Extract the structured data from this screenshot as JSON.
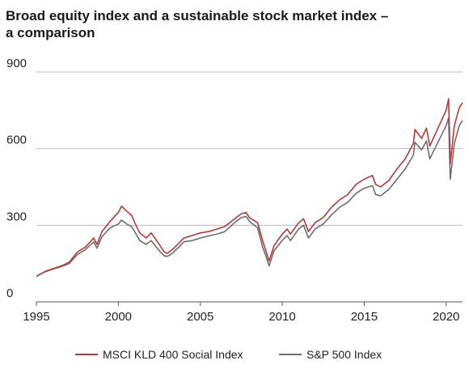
{
  "chart_data": {
    "type": "line",
    "title": "Broad equity index and a sustainable stock market index – a comparison",
    "title_lines": [
      "Broad equity index and a sustainable stock market index –",
      "a comparison"
    ],
    "xlabel": "",
    "ylabel": "",
    "xlim": [
      1995,
      2021
    ],
    "ylim": [
      0,
      900
    ],
    "y_ticks": [
      0,
      300,
      600,
      900
    ],
    "x_ticks": [
      1995,
      2000,
      2005,
      2010,
      2015,
      2020
    ],
    "grid": "horizontal",
    "legend_placement": "bottom",
    "colors": {
      "msci": "#b33a36",
      "sp": "#6e6e6e",
      "grid": "#bdbdbd",
      "axis": "#555555"
    },
    "series": [
      {
        "name": "MSCI KLD 400 Social Index",
        "points": [
          [
            1995.0,
            100
          ],
          [
            1995.5,
            118
          ],
          [
            1996.0,
            130
          ],
          [
            1996.5,
            140
          ],
          [
            1997.0,
            155
          ],
          [
            1997.5,
            195
          ],
          [
            1998.0,
            215
          ],
          [
            1998.5,
            250
          ],
          [
            1998.7,
            225
          ],
          [
            1999.0,
            275
          ],
          [
            1999.5,
            315
          ],
          [
            2000.0,
            350
          ],
          [
            2000.2,
            375
          ],
          [
            2000.5,
            355
          ],
          [
            2000.8,
            340
          ],
          [
            2001.0,
            310
          ],
          [
            2001.3,
            270
          ],
          [
            2001.7,
            250
          ],
          [
            2002.0,
            270
          ],
          [
            2002.5,
            225
          ],
          [
            2002.8,
            195
          ],
          [
            2003.0,
            190
          ],
          [
            2003.3,
            205
          ],
          [
            2003.7,
            230
          ],
          [
            2004.0,
            250
          ],
          [
            2004.5,
            260
          ],
          [
            2005.0,
            270
          ],
          [
            2005.5,
            275
          ],
          [
            2006.0,
            285
          ],
          [
            2006.5,
            295
          ],
          [
            2007.0,
            320
          ],
          [
            2007.5,
            345
          ],
          [
            2007.8,
            350
          ],
          [
            2008.0,
            330
          ],
          [
            2008.5,
            310
          ],
          [
            2008.8,
            240
          ],
          [
            2009.0,
            200
          ],
          [
            2009.2,
            160
          ],
          [
            2009.5,
            220
          ],
          [
            2010.0,
            265
          ],
          [
            2010.3,
            285
          ],
          [
            2010.5,
            265
          ],
          [
            2011.0,
            310
          ],
          [
            2011.3,
            325
          ],
          [
            2011.6,
            275
          ],
          [
            2012.0,
            310
          ],
          [
            2012.5,
            330
          ],
          [
            2013.0,
            370
          ],
          [
            2013.5,
            400
          ],
          [
            2014.0,
            420
          ],
          [
            2014.5,
            460
          ],
          [
            2015.0,
            480
          ],
          [
            2015.5,
            495
          ],
          [
            2015.7,
            460
          ],
          [
            2016.0,
            450
          ],
          [
            2016.5,
            475
          ],
          [
            2017.0,
            520
          ],
          [
            2017.5,
            560
          ],
          [
            2018.0,
            620
          ],
          [
            2018.1,
            675
          ],
          [
            2018.5,
            640
          ],
          [
            2018.8,
            680
          ],
          [
            2019.0,
            610
          ],
          [
            2019.5,
            680
          ],
          [
            2020.0,
            750
          ],
          [
            2020.15,
            795
          ],
          [
            2020.25,
            540
          ],
          [
            2020.5,
            690
          ],
          [
            2020.8,
            760
          ],
          [
            2021.0,
            780
          ]
        ]
      },
      {
        "name": "S&P 500 Index",
        "points": [
          [
            1995.0,
            100
          ],
          [
            1995.5,
            117
          ],
          [
            1996.0,
            128
          ],
          [
            1996.5,
            138
          ],
          [
            1997.0,
            150
          ],
          [
            1997.5,
            185
          ],
          [
            1998.0,
            205
          ],
          [
            1998.5,
            235
          ],
          [
            1998.7,
            210
          ],
          [
            1999.0,
            255
          ],
          [
            1999.5,
            290
          ],
          [
            2000.0,
            305
          ],
          [
            2000.2,
            320
          ],
          [
            2000.5,
            305
          ],
          [
            2000.8,
            295
          ],
          [
            2001.0,
            275
          ],
          [
            2001.3,
            240
          ],
          [
            2001.7,
            225
          ],
          [
            2002.0,
            240
          ],
          [
            2002.5,
            200
          ],
          [
            2002.8,
            180
          ],
          [
            2003.0,
            178
          ],
          [
            2003.3,
            190
          ],
          [
            2003.7,
            215
          ],
          [
            2004.0,
            235
          ],
          [
            2004.5,
            240
          ],
          [
            2005.0,
            250
          ],
          [
            2005.5,
            258
          ],
          [
            2006.0,
            265
          ],
          [
            2006.5,
            275
          ],
          [
            2007.0,
            305
          ],
          [
            2007.5,
            330
          ],
          [
            2007.8,
            335
          ],
          [
            2008.0,
            315
          ],
          [
            2008.5,
            290
          ],
          [
            2008.8,
            215
          ],
          [
            2009.0,
            180
          ],
          [
            2009.2,
            140
          ],
          [
            2009.5,
            200
          ],
          [
            2010.0,
            240
          ],
          [
            2010.3,
            260
          ],
          [
            2010.5,
            240
          ],
          [
            2011.0,
            285
          ],
          [
            2011.3,
            300
          ],
          [
            2011.6,
            250
          ],
          [
            2012.0,
            285
          ],
          [
            2012.5,
            305
          ],
          [
            2013.0,
            340
          ],
          [
            2013.5,
            370
          ],
          [
            2014.0,
            390
          ],
          [
            2014.5,
            425
          ],
          [
            2015.0,
            445
          ],
          [
            2015.5,
            455
          ],
          [
            2015.7,
            420
          ],
          [
            2016.0,
            415
          ],
          [
            2016.5,
            440
          ],
          [
            2017.0,
            480
          ],
          [
            2017.5,
            520
          ],
          [
            2018.0,
            575
          ],
          [
            2018.1,
            625
          ],
          [
            2018.5,
            595
          ],
          [
            2018.8,
            630
          ],
          [
            2019.0,
            560
          ],
          [
            2019.5,
            625
          ],
          [
            2020.0,
            690
          ],
          [
            2020.15,
            720
          ],
          [
            2020.25,
            480
          ],
          [
            2020.5,
            620
          ],
          [
            2020.8,
            690
          ],
          [
            2021.0,
            710
          ]
        ]
      }
    ]
  }
}
